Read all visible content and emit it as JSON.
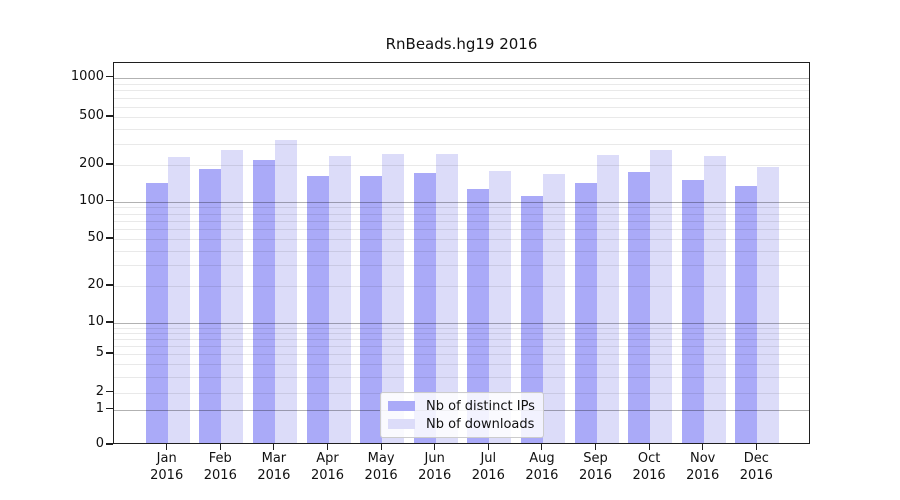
{
  "chart_data": {
    "type": "bar",
    "title": "RnBeads.hg19 2016",
    "year": "2016",
    "categories": [
      "Jan",
      "Feb",
      "Mar",
      "Apr",
      "May",
      "Jun",
      "Jul",
      "Aug",
      "Sep",
      "Oct",
      "Nov",
      "Dec"
    ],
    "series": [
      {
        "name": "Nb of distinct IPs",
        "color": "#aaaaf8",
        "values": [
          138,
          178,
          210,
          155,
          155,
          164,
          123,
          107,
          136,
          169,
          145,
          130
        ]
      },
      {
        "name": "Nb of downloads",
        "color": "#dcdcf9",
        "values": [
          225,
          255,
          310,
          229,
          236,
          236,
          172,
          162,
          231,
          255,
          228,
          185
        ]
      }
    ],
    "y_axis": {
      "scale": "log1p",
      "ticks": [
        0,
        1,
        2,
        5,
        10,
        20,
        50,
        100,
        200,
        500,
        1000
      ],
      "major_gridlines": [
        1,
        10,
        100,
        1000
      ],
      "minor_gridlines": [
        2,
        3,
        4,
        5,
        6,
        7,
        8,
        9,
        20,
        30,
        40,
        50,
        60,
        70,
        80,
        90,
        200,
        300,
        400,
        500,
        600,
        700,
        800,
        900
      ],
      "range": [
        0,
        1100
      ]
    },
    "legend": {
      "position": "lower center"
    },
    "grid": true
  }
}
